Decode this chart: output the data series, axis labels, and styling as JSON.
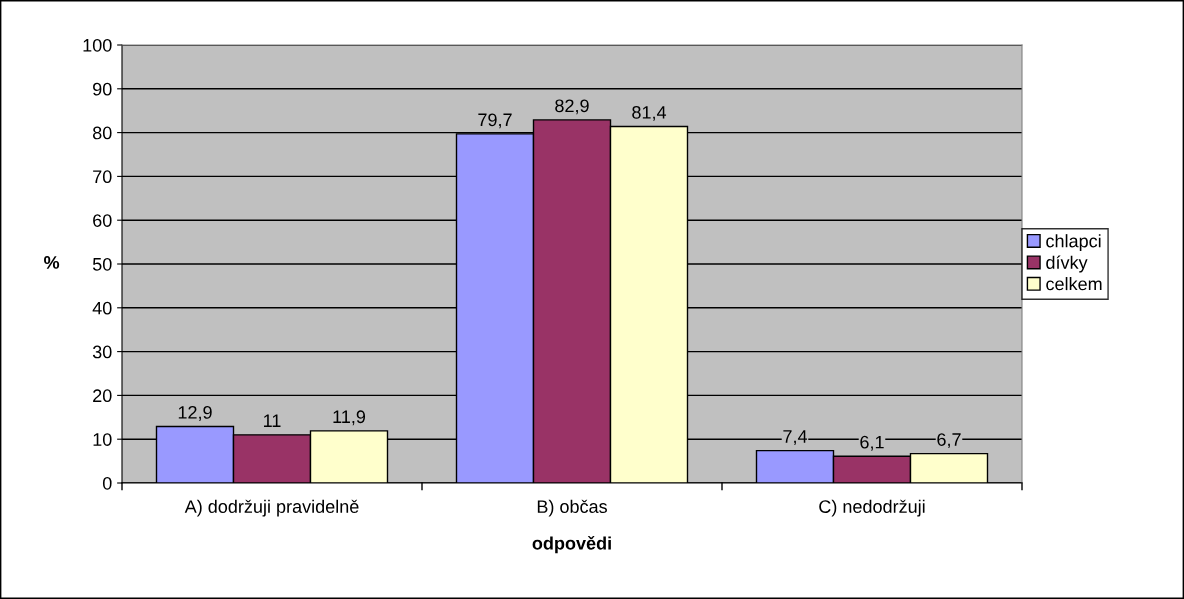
{
  "chart_data": {
    "type": "bar",
    "xlabel": "odpovědi",
    "ylabel": "%",
    "categories": [
      "A) dodržuji pravidelně",
      "B) občas",
      "C) nedodržuji"
    ],
    "series": [
      {
        "name": "chlapci",
        "color": "#9999ff",
        "values": [
          12.9,
          79.7,
          7.4
        ],
        "value_labels": [
          "12,9",
          "79,7",
          "7,4"
        ]
      },
      {
        "name": "dívky",
        "color": "#993366",
        "values": [
          11,
          82.9,
          6.1
        ],
        "value_labels": [
          "11",
          "82,9",
          "6,1"
        ]
      },
      {
        "name": "celkem",
        "color": "#ffffcc",
        "values": [
          11.9,
          81.4,
          6.7
        ],
        "value_labels": [
          "11,9",
          "81,4",
          "6,7"
        ]
      }
    ],
    "ylim": [
      0,
      100
    ],
    "yticks": [
      0,
      10,
      20,
      30,
      40,
      50,
      60,
      70,
      80,
      90,
      100
    ],
    "grid": "y",
    "legend": "right"
  }
}
